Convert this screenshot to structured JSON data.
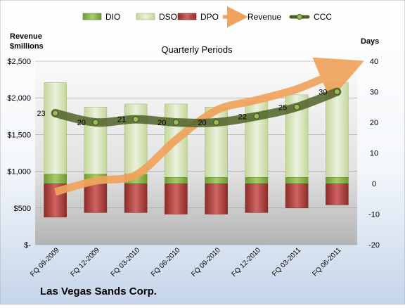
{
  "company": "Las Vegas Sands Corp.",
  "chart_data": {
    "type": "bar",
    "title": "Quarterly Periods",
    "ylabel_left": "Revenue\n$millions",
    "ylabel_right": "Days",
    "categories": [
      "FQ 09-2009",
      "FQ 12-2009",
      "FQ 03-2010",
      "FQ 06-2010",
      "FQ 09-2010",
      "FQ 12-2010",
      "FQ 03-2011",
      "FQ 06-2011"
    ],
    "left_axis": {
      "ylim": [
        0,
        2500
      ],
      "ticks": [
        0,
        500,
        1000,
        1500,
        2000,
        2500
      ],
      "tick_labels": [
        "$-",
        "$500",
        "$1,000",
        "$1,500",
        "$2,000",
        "$2,500"
      ]
    },
    "right_axis": {
      "ylim": [
        -20,
        40
      ],
      "ticks": [
        -20,
        -10,
        0,
        10,
        20,
        30,
        40
      ],
      "tick_labels": [
        "-20",
        "-10",
        "0",
        "10",
        "20",
        "30",
        "40"
      ]
    },
    "legend": {
      "placement": "top",
      "items": [
        "DIO",
        "DSO",
        "DPO",
        "Revenue",
        "CCC"
      ]
    },
    "series": [
      {
        "name": "DIO",
        "type": "stacked-bar",
        "axis": "right",
        "color": "#8db94e",
        "values": [
          3,
          3,
          3,
          2,
          2,
          2,
          2,
          2
        ]
      },
      {
        "name": "DSO",
        "type": "stacked-bar",
        "axis": "right",
        "color": "#d7e4bd",
        "values": [
          30,
          22,
          23,
          24,
          23,
          25,
          27,
          31
        ]
      },
      {
        "name": "DPO",
        "type": "stacked-bar",
        "axis": "right",
        "color": "#c0504d",
        "values": [
          -11,
          -9.5,
          -9.5,
          -10,
          -10,
          -9.5,
          -8,
          -7
        ]
      },
      {
        "name": "Revenue",
        "type": "line",
        "axis": "left",
        "color": "#f0a35c",
        "values": [
          720,
          870,
          950,
          1430,
          1830,
          1970,
          2120,
          2350
        ]
      },
      {
        "name": "CCC",
        "type": "line",
        "axis": "right",
        "color": "#4f6228",
        "values": [
          23,
          20,
          21,
          20,
          20,
          22,
          25,
          30
        ],
        "data_labels": [
          "23",
          "20",
          "21",
          "20",
          "20",
          "22",
          "25",
          "30"
        ]
      }
    ],
    "grid": true
  }
}
